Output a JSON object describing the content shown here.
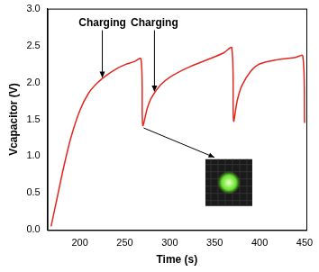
{
  "chart_data": {
    "type": "line",
    "x_label": "Time (s)",
    "y_label": "Vcapacitor (V)",
    "color": "#e3261f",
    "grid": false,
    "xlim": [
      164,
      452
    ],
    "xticks": [
      200,
      250,
      300,
      350,
      400,
      450
    ],
    "ylim": [
      0,
      3
    ],
    "yticks": [
      {
        "value": 0,
        "label": "0.0"
      },
      {
        "value": 0.5,
        "label": "0.5"
      },
      {
        "value": 1,
        "label": "1.0"
      },
      {
        "value": 1.5,
        "label": "1.5"
      },
      {
        "value": 2,
        "label": "2.0"
      },
      {
        "value": 2.5,
        "label": "2.5"
      },
      {
        "value": 3,
        "label": "3.0"
      }
    ],
    "x": [
      168,
      175,
      182,
      190,
      200,
      210,
      220,
      230,
      240,
      250,
      260,
      268,
      270,
      275,
      280,
      290,
      300,
      320,
      340,
      360,
      369,
      371,
      375,
      380,
      390,
      400,
      420,
      440,
      448,
      450
    ],
    "values": [
      0.05,
      0.45,
      0.85,
      1.25,
      1.62,
      1.86,
      2.0,
      2.1,
      2.18,
      2.24,
      2.28,
      2.32,
      1.42,
      1.65,
      1.8,
      1.97,
      2.07,
      2.2,
      2.3,
      2.4,
      2.47,
      1.48,
      1.75,
      1.95,
      2.15,
      2.25,
      2.31,
      2.34,
      2.36,
      1.45
    ],
    "annotations": [
      {
        "text": "Charging",
        "x": 225,
        "y": 2.05
      },
      {
        "text": "Charging",
        "x": 283,
        "y": 1.86
      }
    ]
  }
}
